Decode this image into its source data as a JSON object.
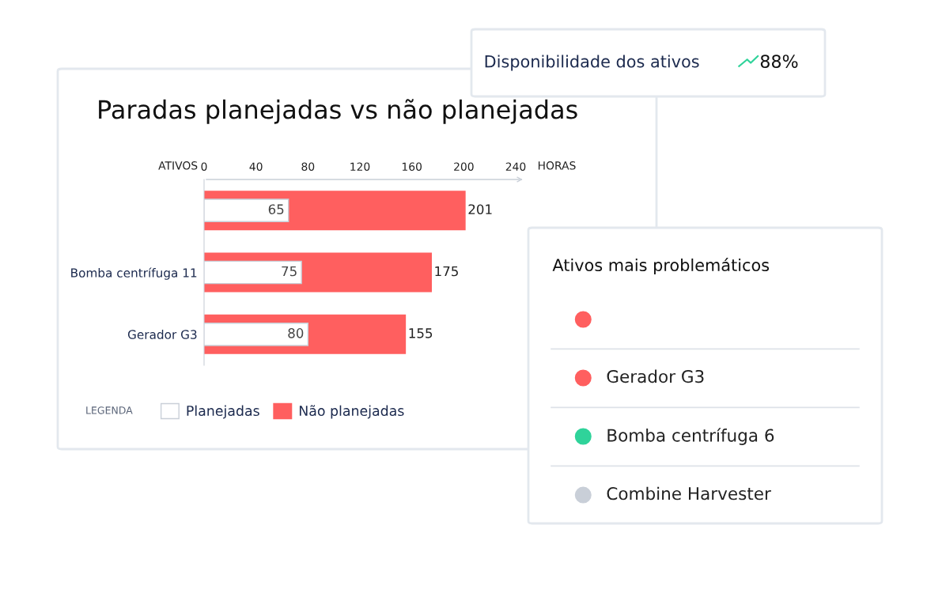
{
  "chart_data": [
    {
      "type": "bar",
      "orientation": "horizontal",
      "title": "Paradas planejadas vs não planejadas",
      "xlabel": "HORAS",
      "ylabel": "ATIVOS",
      "categories": [
        null,
        "Bomba centrífuga 11",
        "Gerador G3"
      ],
      "series": [
        {
          "name": "Não planejadas",
          "color": "#ff5f5f",
          "values": [
            201,
            175,
            155
          ]
        },
        {
          "name": "Planejadas",
          "color": "#ffffff",
          "values": [
            65,
            75,
            80
          ]
        }
      ],
      "xlim": [
        0,
        240
      ],
      "xticks": [
        0,
        40,
        80,
        120,
        160,
        200,
        240
      ],
      "data_labels": true,
      "grid": false,
      "legend": "bottom",
      "legend_title": "LEGENDA"
    },
    {
      "type": "other",
      "title": "Disponibilidade dos ativos",
      "annotations": [
        "88%"
      ]
    },
    {
      "type": "other",
      "title": "Ativos mais problemáticos",
      "categories": [
        null,
        "Gerador G3",
        "Bomba centrífuga 6",
        "Combine Harvester"
      ],
      "colors": [
        "#ff5f5f",
        "#ff5f5f",
        "#2fd39a",
        "#c9cfd8"
      ]
    }
  ]
}
